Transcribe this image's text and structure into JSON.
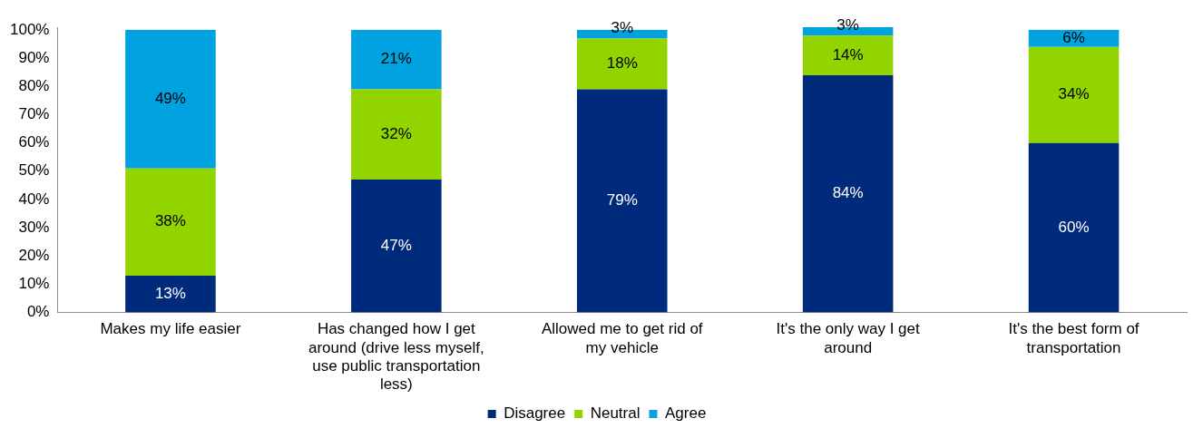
{
  "chart_data": {
    "type": "bar",
    "stacked": true,
    "categories": [
      "Makes my life easier",
      "Has changed how I get around (drive less myself, use public transportation less)",
      "Allowed me to get rid of my vehicle",
      "It's the only way I get around",
      "It's the best form of transportation"
    ],
    "series": [
      {
        "name": "Disagree",
        "color": "#002a7c",
        "values": [
          13,
          47,
          79,
          84,
          60
        ],
        "value_labels": [
          "13%",
          "47%",
          "79%",
          "84%",
          "60%"
        ]
      },
      {
        "name": "Neutral",
        "color": "#92d400",
        "values": [
          38,
          32,
          18,
          14,
          34
        ],
        "value_labels": [
          "38%",
          "32%",
          "18%",
          "14%",
          "34%"
        ]
      },
      {
        "name": "Agree",
        "color": "#00a3e0",
        "values": [
          49,
          21,
          3,
          3,
          6
        ],
        "value_labels": [
          "49%",
          "21%",
          "3%",
          "3%",
          "6%"
        ]
      }
    ],
    "ylim": [
      0,
      101
    ],
    "yticks": [
      {
        "value": 0,
        "label": "0%"
      },
      {
        "value": 10,
        "label": "10%"
      },
      {
        "value": 20,
        "label": "20%"
      },
      {
        "value": 30,
        "label": "30%"
      },
      {
        "value": 40,
        "label": "40%"
      },
      {
        "value": 50,
        "label": "50%"
      },
      {
        "value": 60,
        "label": "60%"
      },
      {
        "value": 70,
        "label": "70%"
      },
      {
        "value": 80,
        "label": "80%"
      },
      {
        "value": 90,
        "label": "90%"
      },
      {
        "value": 100,
        "label": "100%"
      }
    ],
    "grid": false,
    "legend": "bottom"
  }
}
